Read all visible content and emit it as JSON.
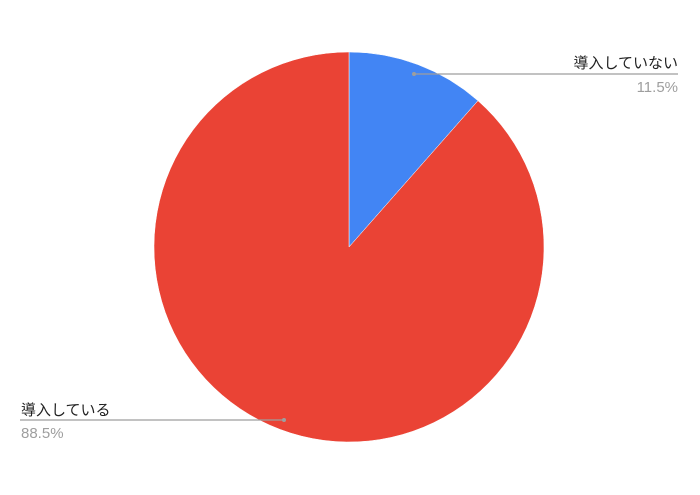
{
  "chart_data": {
    "type": "pie",
    "title": "",
    "slices": [
      {
        "label": "導入していない",
        "value": 11.5,
        "value_label": "11.5%",
        "color": "#4285F4"
      },
      {
        "label": "導入している",
        "value": 88.5,
        "value_label": "88.5%",
        "color": "#EA4335"
      }
    ],
    "start_angle": "top",
    "direction": "clockwise",
    "legend": "none",
    "label_style": "callout-lines"
  }
}
